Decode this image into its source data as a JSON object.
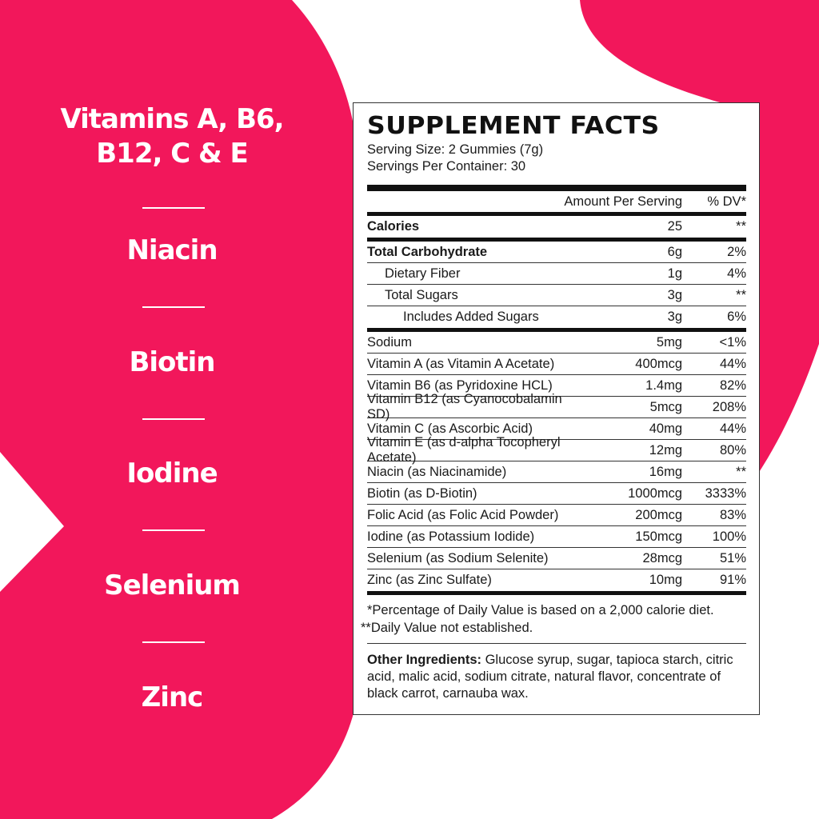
{
  "brand_color": "#F2175B",
  "side_list": [
    "Vitamins A, B6,",
    "B12, C & E",
    "Niacin",
    "Biotin",
    "Iodine",
    "Selenium",
    "Zinc"
  ],
  "label": {
    "title": "SUPPLEMENT FACTS",
    "serving_size": "Serving Size: 2 Gummies (7g)",
    "servings_per_container": "Servings Per Container: 30",
    "col_amount": "Amount Per Serving",
    "col_dv": "% DV*",
    "rows": [
      {
        "name": "Calories",
        "amount": "25",
        "dv": "**"
      },
      {
        "name": "Total Carbohydrate",
        "amount": "6g",
        "dv": "2%"
      },
      {
        "name": "Dietary Fiber",
        "amount": "1g",
        "dv": "4%"
      },
      {
        "name": "Total Sugars",
        "amount": "3g",
        "dv": "**"
      },
      {
        "name": "Includes Added Sugars",
        "amount": "3g",
        "dv": "6%"
      },
      {
        "name": "Sodium",
        "amount": "5mg",
        "dv": "<1%"
      },
      {
        "name": "Vitamin A (as Vitamin A Acetate)",
        "amount": "400mcg",
        "dv": "44%"
      },
      {
        "name": "Vitamin B6 (as Pyridoxine HCL)",
        "amount": "1.4mg",
        "dv": "82%"
      },
      {
        "name": "Vitamin B12 (as Cyanocobalamin SD)",
        "amount": "5mcg",
        "dv": "208%"
      },
      {
        "name": "Vitamin C (as Ascorbic Acid)",
        "amount": "40mg",
        "dv": "44%"
      },
      {
        "name": "Vitamin E (as d-alpha Tocopheryl Acetate)",
        "amount": "12mg",
        "dv": "80%"
      },
      {
        "name": "Niacin (as Niacinamide)",
        "amount": "16mg",
        "dv": "**"
      },
      {
        "name": "Biotin (as D-Biotin)",
        "amount": "1000mcg",
        "dv": "3333%"
      },
      {
        "name": "Folic Acid (as Folic Acid Powder)",
        "amount": "200mcg",
        "dv": "83%"
      },
      {
        "name": "Iodine (as Potassium Iodide)",
        "amount": "150mcg",
        "dv": "100%"
      },
      {
        "name": "Selenium (as Sodium Selenite)",
        "amount": "28mcg",
        "dv": "51%"
      },
      {
        "name": "Zinc (as Zinc Sulfate)",
        "amount": "10mg",
        "dv": "91%"
      }
    ],
    "footnote1": "*Percentage of Daily Value is based on a 2,000 calorie diet.",
    "footnote2": "**Daily Value not established.",
    "ingredients_label": "Other Ingredients:",
    "ingredients": " Glucose syrup, sugar, tapioca starch, citric acid, malic acid, sodium citrate, natural flavor, concentrate of black carrot, carnauba wax."
  }
}
